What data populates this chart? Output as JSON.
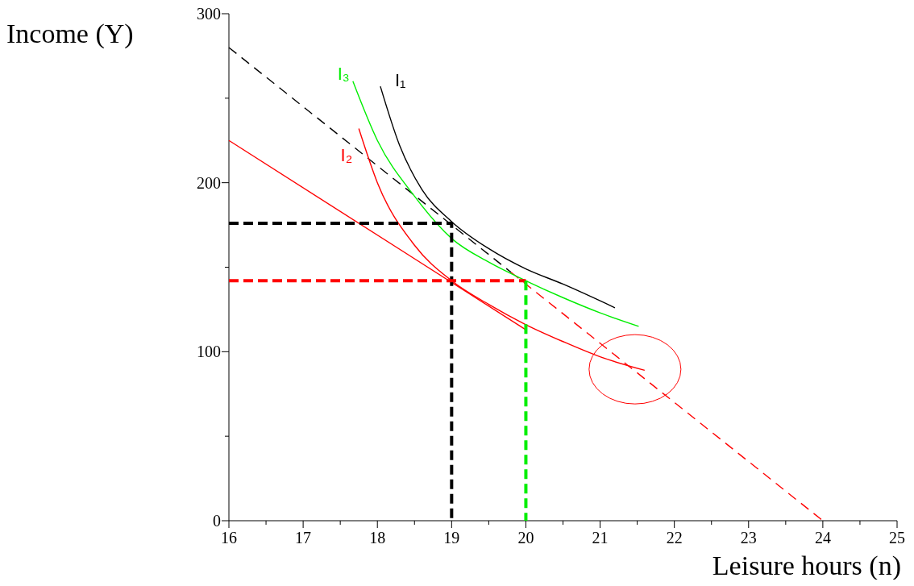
{
  "chart_data": {
    "type": "line",
    "xlabel": "Leisure hours (n)",
    "ylabel": "Income (Y)",
    "xlim": [
      16,
      25
    ],
    "ylim": [
      0,
      300
    ],
    "xticks": [
      16,
      {
        "value": 16.5,
        "label": null
      },
      17,
      {
        "value": 17.5,
        "label": null
      },
      18,
      {
        "value": 18.5,
        "label": null
      },
      19,
      {
        "value": 19.5,
        "label": null
      },
      20,
      {
        "value": 20.5,
        "label": null
      },
      21,
      {
        "value": 21.5,
        "label": null
      },
      22,
      {
        "value": 22.5,
        "label": null
      },
      23,
      {
        "value": 23.5,
        "label": null
      },
      24,
      {
        "value": 24.5,
        "label": null
      },
      25
    ],
    "yticks": [
      0,
      {
        "value": 50,
        "label": null
      },
      100,
      {
        "value": 150,
        "label": null
      },
      200,
      {
        "value": 250,
        "label": null
      },
      300
    ],
    "grid": false,
    "marker": "none",
    "series": [
      {
        "color": "#000000",
        "line_style": "dashed",
        "x": [
          16,
          19.8
        ],
        "values": [
          280,
          147
        ]
      },
      {
        "color": "#ff0000",
        "line_style": "dashed",
        "x": [
          19.8,
          24
        ],
        "values": [
          147,
          0
        ]
      },
      {
        "color": "#ff0000",
        "line_style": "solid",
        "x": [
          16,
          20
        ],
        "values": [
          225,
          113
        ]
      },
      {
        "name": "I₂",
        "color": "#ff0000",
        "line_style": "solid",
        "x": [
          17.75,
          18,
          18.5,
          19,
          19.5,
          20,
          20.5,
          21,
          21.6
        ],
        "values": [
          232,
          200,
          163,
          142,
          128,
          116,
          106,
          97,
          89
        ]
      },
      {
        "name": "I₃",
        "color": "#00ee00",
        "line_style": "solid",
        "x": [
          17.67,
          18,
          18.5,
          19,
          19.5,
          20,
          20.5,
          21,
          21.52
        ],
        "values": [
          260,
          225,
          192,
          167,
          153,
          142,
          132,
          123,
          115
        ]
      },
      {
        "name": "I₁",
        "color": "#000000",
        "line_style": "solid",
        "x": [
          18.04,
          18.3,
          18.6,
          19,
          19.5,
          20,
          20.5,
          21.2
        ],
        "values": [
          257,
          222,
          196,
          177,
          161,
          149,
          140,
          126
        ]
      },
      {
        "color": "#000000",
        "line_style": "dashed",
        "x": [
          16,
          19,
          19
        ],
        "values": [
          176,
          176,
          0
        ]
      },
      {
        "color": "#ff0000",
        "line_style": "dashed",
        "x": [
          16,
          20
        ],
        "values": [
          142,
          142
        ]
      },
      {
        "color": "#00ee00",
        "line_style": "dashed",
        "x": [
          20,
          20
        ],
        "values": [
          142,
          0
        ]
      }
    ]
  }
}
